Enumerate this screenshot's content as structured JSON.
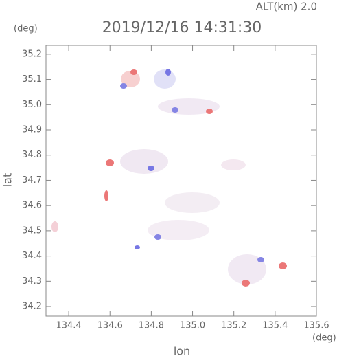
{
  "chart_data": {
    "type": "map",
    "title": "2019/12/16 14:31:30",
    "altitude_label": "ALT(km) 2.0",
    "y_unit": "(deg)",
    "x_unit": "(deg)",
    "xlabel": "lon",
    "ylabel": "lat",
    "xlim": [
      134.29,
      135.6
    ],
    "ylim": [
      34.162,
      35.235
    ],
    "xticks": [
      134.4,
      134.6,
      134.8,
      {
        "value": 135.0,
        "label": "135.0"
      },
      135.2,
      135.4,
      135.6
    ],
    "yticks": [
      34.2,
      34.3,
      34.4,
      34.5,
      34.6,
      34.7,
      34.8,
      34.9,
      {
        "value": 35.0,
        "label": "35.0"
      },
      35.1,
      35.2
    ]
  }
}
